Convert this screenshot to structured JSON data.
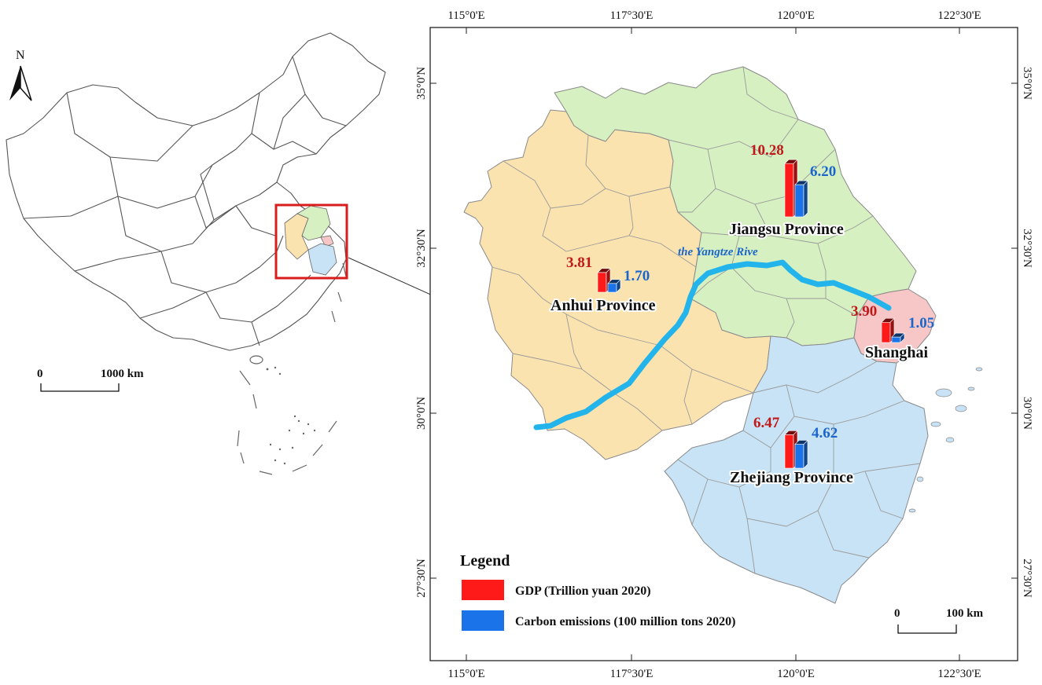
{
  "north_arrow": {
    "label": "N"
  },
  "overview_scale": {
    "start": "0",
    "end": "1000 km"
  },
  "detail_scale": {
    "start": "0",
    "end": "100 km"
  },
  "longitude_ticks": [
    "115°0'E",
    "117°30'E",
    "120°0'E",
    "122°30'E"
  ],
  "latitude_ticks": [
    "35°0'N",
    "32°30'N",
    "30°0'N",
    "27°30'N"
  ],
  "river": {
    "label": "the Yangtze Rive"
  },
  "provinces": [
    {
      "name": "Jiangsu Province",
      "gdp": "10.28",
      "gdp_value": 10.28,
      "carbon": "6.20",
      "carbon_value": 6.2,
      "fill": "#d6f0c2"
    },
    {
      "name": "Anhui Province",
      "gdp": "3.81",
      "gdp_value": 3.81,
      "carbon": "1.70",
      "carbon_value": 1.7,
      "fill": "#fbe3b0"
    },
    {
      "name": "Shanghai",
      "gdp": "3.90",
      "gdp_value": 3.9,
      "carbon": "1.05",
      "carbon_value": 1.05,
      "fill": "#f7c6c6"
    },
    {
      "name": "Zhejiang Province",
      "gdp": "6.47",
      "gdp_value": 6.47,
      "carbon": "4.62",
      "carbon_value": 4.62,
      "fill": "#c8e3f5"
    }
  ],
  "legend": {
    "title": "Legend",
    "items": [
      {
        "label": "GDP  (Trillion yuan 2020)",
        "color": "#ff1a1a"
      },
      {
        "label": "Carbon emissions  (100 million tons 2020)",
        "color": "#1a73e8"
      }
    ]
  },
  "colors": {
    "river": "#22b4ea",
    "gdp_bar": "#ff1a1a",
    "carbon_bar": "#1a73e8",
    "highlight_box": "#d91c1c"
  }
}
